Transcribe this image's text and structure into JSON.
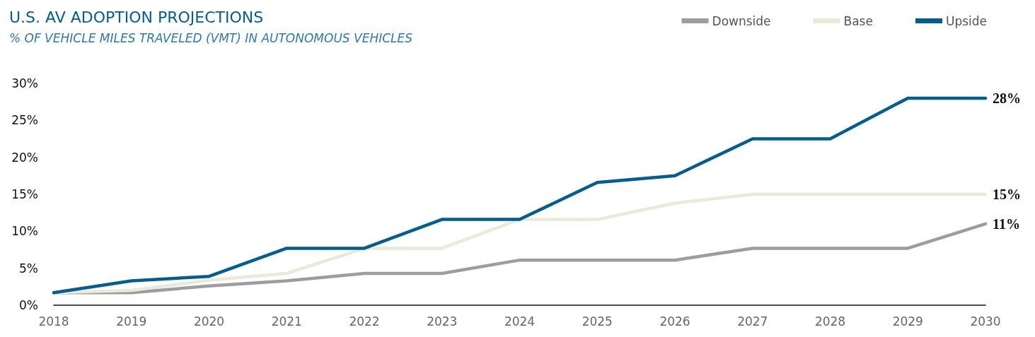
{
  "chart_data": {
    "type": "line",
    "title": "U.S. AV ADOPTION PROJECTIONS",
    "subtitle": "% OF VEHICLE MILES TRAVELED (VMT) IN AUTONOMOUS VEHICLES",
    "categories": [
      "2018",
      "2019",
      "2020",
      "2021",
      "2022",
      "2023",
      "2024",
      "2025",
      "2026",
      "2027",
      "2028",
      "2029",
      "2030"
    ],
    "series": [
      {
        "name": "Downside",
        "color": "#9d9ca1",
        "values": [
          1.7,
          1.7,
          2.6,
          3.3,
          4.3,
          4.3,
          6.1,
          6.1,
          6.1,
          7.7,
          7.7,
          7.7,
          11
        ],
        "value_labels": [
          null,
          null,
          null,
          null,
          null,
          null,
          null,
          null,
          null,
          null,
          null,
          null,
          "11%"
        ]
      },
      {
        "name": "Base",
        "color": "#eae9da",
        "values": [
          1.7,
          2.0,
          3.4,
          4.3,
          7.7,
          7.7,
          11.6,
          11.6,
          13.8,
          15,
          15,
          15,
          15
        ],
        "value_labels": [
          null,
          null,
          null,
          null,
          null,
          null,
          null,
          null,
          null,
          null,
          null,
          null,
          "15%"
        ]
      },
      {
        "name": "Upside",
        "color": "#005f92",
        "values": [
          1.7,
          3.3,
          3.9,
          7.7,
          7.7,
          11.6,
          11.6,
          16.6,
          17.5,
          22.5,
          22.5,
          28,
          28
        ],
        "value_labels": [
          null,
          null,
          null,
          null,
          null,
          null,
          null,
          null,
          null,
          null,
          null,
          null,
          "28%"
        ]
      }
    ],
    "ylim": [
      0,
      30
    ],
    "yticks": [
      {
        "value": 0,
        "label": "0%"
      },
      {
        "value": 5,
        "label": "5%"
      },
      {
        "value": 10,
        "label": "10%"
      },
      {
        "value": 15,
        "label": "15%"
      },
      {
        "value": 20,
        "label": "20%"
      },
      {
        "value": 25,
        "label": "25%"
      },
      {
        "value": 30,
        "label": "30%"
      }
    ],
    "grid": false,
    "legend": "top right",
    "marker": "none",
    "line_style": "solid"
  }
}
